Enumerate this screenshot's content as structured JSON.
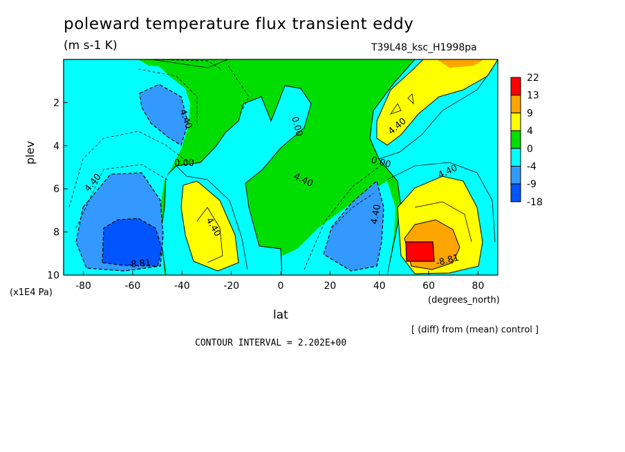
{
  "chart_data": {
    "type": "heatmap",
    "title": "poleward temperature flux transient eddy",
    "units": "(m s-1 K)",
    "run_label": "T39L48_ksc_H1998pa",
    "xlabel": "lat",
    "x_units": "(degrees_north)",
    "ylabel": "plev",
    "y_units": "(x1E4 Pa)",
    "xlim": [
      -88,
      88
    ],
    "ylim": [
      10,
      0
    ],
    "x_ticks": [
      "-80",
      "-60",
      "-40",
      "-20",
      "0",
      "20",
      "40",
      "60",
      "80"
    ],
    "y_ticks": [
      "2",
      "4",
      "6",
      "8",
      "10"
    ],
    "colorbar": {
      "labels": [
        "22",
        "13",
        "9",
        "4",
        "0",
        "-4",
        "-9",
        "-18"
      ],
      "colors": [
        "#ff0000",
        "#ffa500",
        "#ffff00",
        "#00dd00",
        "#00ffff",
        "#3399ff",
        "#0055ff"
      ]
    },
    "contour_labels": [
      "4.40",
      "0.00",
      "0.00",
      "4.40",
      "4.40",
      "-8.81",
      "4.40",
      "0.00",
      "4.40",
      "4.40",
      "-8.81",
      "4.40"
    ],
    "footnote": "[ (diff) from (mean) control ]",
    "contour_interval": "CONTOUR INTERVAL = 2.202E+00"
  }
}
